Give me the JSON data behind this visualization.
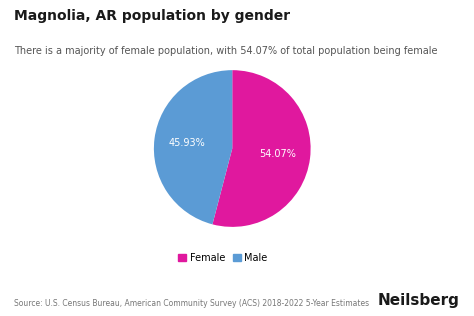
{
  "title": "Magnolia, AR population by gender",
  "subtitle": "There is a majority of female population, with 54.07% of total population being female",
  "slices": [
    54.07,
    45.93
  ],
  "labels": [
    "Female",
    "Male"
  ],
  "pct_labels": [
    "54.07%",
    "45.93%"
  ],
  "colors": [
    "#e0189e",
    "#5b9bd5"
  ],
  "text_color": "#ffffff",
  "source": "Source: U.S. Census Bureau, American Community Survey (ACS) 2018-2022 5-Year Estimates",
  "branding": "Neilsberg",
  "background_color": "#ffffff",
  "startangle": 90,
  "title_fontsize": 10,
  "subtitle_fontsize": 7,
  "legend_fontsize": 7,
  "source_fontsize": 5.5,
  "brand_fontsize": 11
}
